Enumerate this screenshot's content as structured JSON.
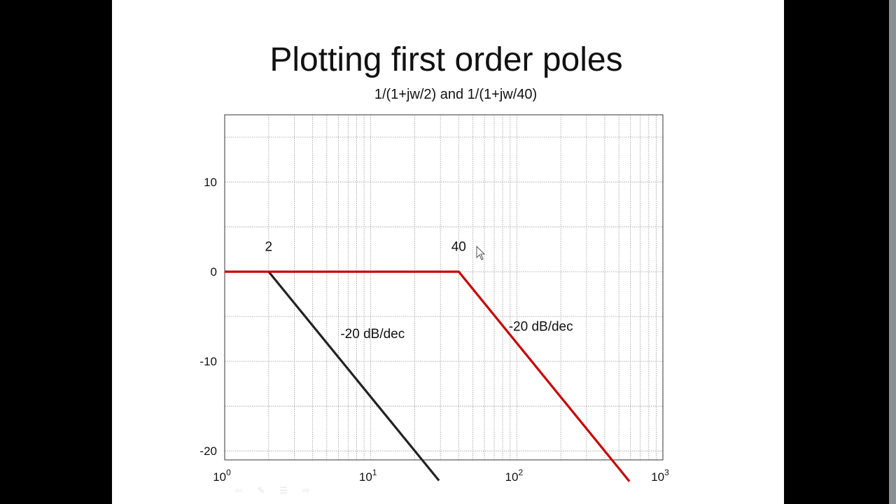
{
  "slide": {
    "title": "Plotting first order poles",
    "subtitle": "1/(1+jw/2) and 1/(1+jw/40)"
  },
  "chart_data": {
    "type": "line",
    "x_scale": "log",
    "xlim": [
      1,
      1000
    ],
    "ylim": [
      -21,
      17.5
    ],
    "grid": true,
    "x_ticks": [
      {
        "value": 1,
        "base": "10",
        "exp": "0"
      },
      {
        "value": 10,
        "base": "10",
        "exp": "1"
      },
      {
        "value": 100,
        "base": "10",
        "exp": "2"
      },
      {
        "value": 1000,
        "base": "10",
        "exp": "3"
      }
    ],
    "y_ticks": [
      {
        "value": 10,
        "label": "10"
      },
      {
        "value": 0,
        "label": "0"
      },
      {
        "value": -10,
        "label": "-10"
      },
      {
        "value": -20,
        "label": "-20"
      }
    ],
    "series": [
      {
        "color": "#222222",
        "x": [
          2,
          29.3
        ],
        "y": [
          0,
          -23.3
        ]
      },
      {
        "color": "#cc0000",
        "x": [
          1,
          40,
          590
        ],
        "y": [
          0,
          0,
          -23.4
        ]
      }
    ],
    "annotations": [
      {
        "text": "2",
        "x": 2,
        "y": 2.3
      },
      {
        "text": "40",
        "x": 40,
        "y": 2.3
      },
      {
        "text": "-20 dB/dec",
        "x": 6.2,
        "y": -7.4
      },
      {
        "text": "-20 dB/dec",
        "x": 88,
        "y": -6.6
      }
    ]
  },
  "colors": {
    "slide_bg": "#ffffff",
    "frame_bg": "#000000"
  }
}
